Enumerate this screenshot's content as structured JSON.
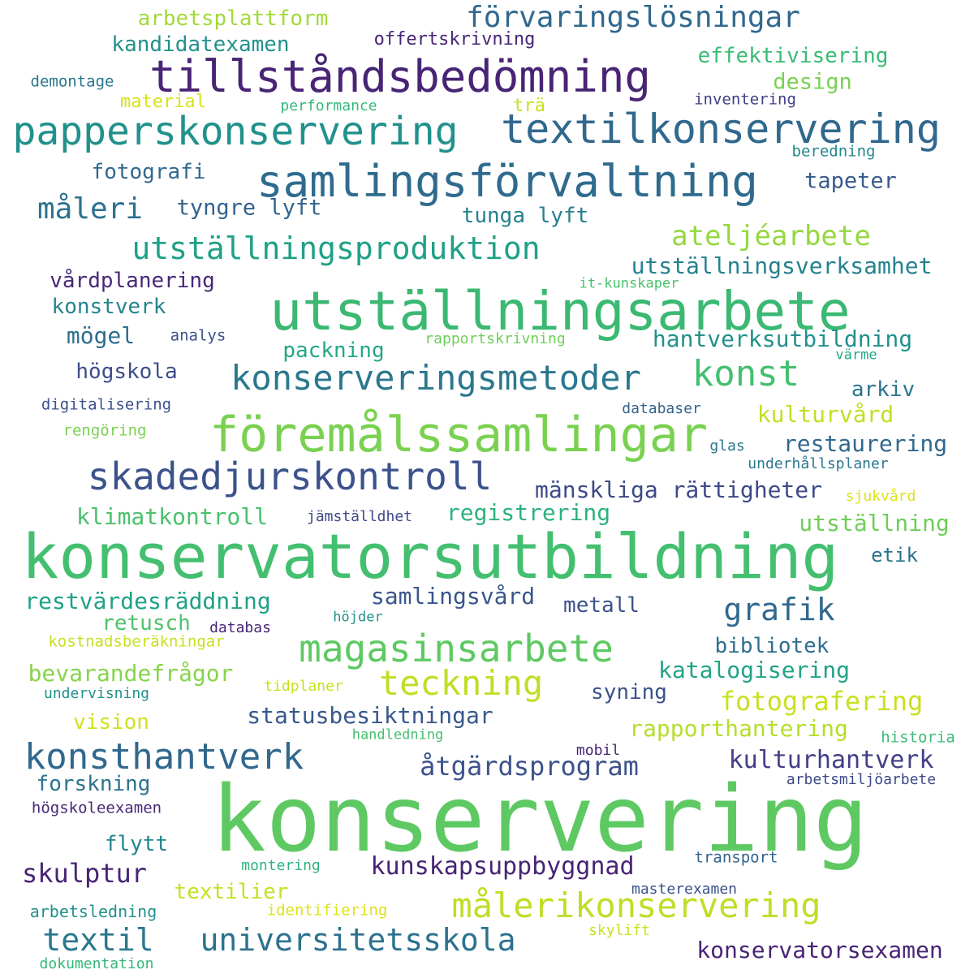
{
  "palette": {
    "dark_purple": "#482475",
    "indigo": "#414487",
    "steel_blue": "#355f8d",
    "teal_blue": "#2a788e",
    "teal": "#21918c",
    "green_teal": "#22a884",
    "green": "#44bf70",
    "light_green": "#7ad151",
    "lime": "#bddf26",
    "yellow": "#dce319"
  },
  "words": [
    {
      "text": "konservering",
      "color": "#5ec962",
      "weight": 1.0
    },
    {
      "text": "konservatorsutbildning",
      "color": "#44bf70",
      "weight": 0.72
    },
    {
      "text": "utställningsarbete",
      "color": "#3bb872",
      "weight": 0.62
    },
    {
      "text": "föremålssamlingar",
      "color": "#7ad151",
      "weight": 0.58
    },
    {
      "text": "samlingsförvaltning",
      "color": "#2f6b8e",
      "weight": 0.5
    },
    {
      "text": "tillståndsbedömning",
      "color": "#482475",
      "weight": 0.5
    },
    {
      "text": "textilkonservering",
      "color": "#31688e",
      "weight": 0.47
    },
    {
      "text": "papperskonservering",
      "color": "#21918c",
      "weight": 0.44
    },
    {
      "text": "magasinsarbete",
      "color": "#5ec962",
      "weight": 0.44
    },
    {
      "text": "skadedjurskontroll",
      "color": "#3b528b",
      "weight": 0.44
    },
    {
      "text": "konserveringsmetoder",
      "color": "#2a788e",
      "weight": 0.4
    },
    {
      "text": "konsthantverk",
      "color": "#31688e",
      "weight": 0.42
    },
    {
      "text": "målerikonservering",
      "color": "#bddf26",
      "weight": 0.4
    },
    {
      "text": "teckning",
      "color": "#bddf26",
      "weight": 0.4
    },
    {
      "text": "konst",
      "color": "#44bf70",
      "weight": 0.42
    },
    {
      "text": "utställningsproduktion",
      "color": "#1fa187",
      "weight": 0.36
    },
    {
      "text": "universitetsskola",
      "color": "#2c728e",
      "weight": 0.36
    },
    {
      "text": "textil",
      "color": "#2a788e",
      "weight": 0.36
    },
    {
      "text": "grafik",
      "color": "#31688e",
      "weight": 0.36
    },
    {
      "text": "förvaringslösningar",
      "color": "#31688e",
      "weight": 0.33
    },
    {
      "text": "måleri",
      "color": "#2c728e",
      "weight": 0.33
    },
    {
      "text": "ateljéarbete",
      "color": "#95d840",
      "weight": 0.32
    },
    {
      "text": "åtgärdsprogram",
      "color": "#3b528b",
      "weight": 0.31
    },
    {
      "text": "skulptur",
      "color": "#482475",
      "weight": 0.3
    },
    {
      "text": "fotografering",
      "color": "#c8e020",
      "weight": 0.3
    },
    {
      "text": "kulturhantverk",
      "color": "#433e85",
      "weight": 0.28
    },
    {
      "text": "kunskapsuppbyggnad",
      "color": "#482475",
      "weight": 0.27
    },
    {
      "text": "konservatorsexamen",
      "color": "#482475",
      "weight": 0.27
    },
    {
      "text": "statusbesiktningar",
      "color": "#38588c",
      "weight": 0.27
    },
    {
      "text": "utställningsverksamhet",
      "color": "#26828e",
      "weight": 0.26
    },
    {
      "text": "hantverksutbildning",
      "color": "#21918c",
      "weight": 0.26
    },
    {
      "text": "restaurering",
      "color": "#31688e",
      "weight": 0.26
    },
    {
      "text": "mänskliga rättigheter",
      "color": "#3e4989",
      "weight": 0.26
    },
    {
      "text": "restvärdesräddning",
      "color": "#1fa187",
      "weight": 0.26
    },
    {
      "text": "rapporthantering",
      "color": "#b5de2b",
      "weight": 0.26
    },
    {
      "text": "katalogisering",
      "color": "#20a386",
      "weight": 0.26
    },
    {
      "text": "bevarandefrågor",
      "color": "#86d549",
      "weight": 0.26
    },
    {
      "text": "utställning",
      "color": "#6ece58",
      "weight": 0.26
    },
    {
      "text": "klimatkontroll",
      "color": "#4ac16d",
      "weight": 0.26
    },
    {
      "text": "registrering",
      "color": "#2db27d",
      "weight": 0.26
    },
    {
      "text": "samlingsvård",
      "color": "#39568c",
      "weight": 0.26
    },
    {
      "text": "kulturvård",
      "color": "#c2df23",
      "weight": 0.26
    },
    {
      "text": "effektivisering",
      "color": "#3bbb75",
      "weight": 0.24
    },
    {
      "text": "arbetsplattform",
      "color": "#a0da39",
      "weight": 0.24
    },
    {
      "text": "kandidatexamen",
      "color": "#21918c",
      "weight": 0.24
    },
    {
      "text": "vårdplanering",
      "color": "#482878",
      "weight": 0.24
    },
    {
      "text": "tyngre lyft",
      "color": "#33638d",
      "weight": 0.25
    },
    {
      "text": "tapeter",
      "color": "#38598c",
      "weight": 0.25
    },
    {
      "text": "design",
      "color": "#7ad151",
      "weight": 0.25
    },
    {
      "text": "fotografi",
      "color": "#31688e",
      "weight": 0.24
    },
    {
      "text": "tunga lyft",
      "color": "#27808e",
      "weight": 0.24
    },
    {
      "text": "konstverk",
      "color": "#25848e",
      "weight": 0.24
    },
    {
      "text": "mögel",
      "color": "#2e6e8e",
      "weight": 0.26
    },
    {
      "text": "packning",
      "color": "#22a884",
      "weight": 0.24
    },
    {
      "text": "högskola",
      "color": "#3e4c8a",
      "weight": 0.24
    },
    {
      "text": "arkiv",
      "color": "#2a768e",
      "weight": 0.24
    },
    {
      "text": "metall",
      "color": "#3b528b",
      "weight": 0.24
    },
    {
      "text": "retusch",
      "color": "#4ec36b",
      "weight": 0.24
    },
    {
      "text": "etik",
      "color": "#2c728e",
      "weight": 0.22
    },
    {
      "text": "bibliotek",
      "color": "#2e6e8e",
      "weight": 0.24
    },
    {
      "text": "syning",
      "color": "#3b528b",
      "weight": 0.24
    },
    {
      "text": "vision",
      "color": "#d0e11c",
      "weight": 0.24
    },
    {
      "text": "forskning",
      "color": "#2c728e",
      "weight": 0.24
    },
    {
      "text": "flytt",
      "color": "#25858e",
      "weight": 0.24
    },
    {
      "text": "textilier",
      "color": "#c5e021",
      "weight": 0.24
    },
    {
      "text": "offertskrivning",
      "color": "#482475",
      "weight": 0.2
    },
    {
      "text": "trä",
      "color": "#c8e020",
      "weight": 0.2
    },
    {
      "text": "material",
      "color": "#d8e219",
      "weight": 0.2
    },
    {
      "text": "demontage",
      "color": "#2a788e",
      "weight": 0.17
    },
    {
      "text": "performance",
      "color": "#35b779",
      "weight": 0.16
    },
    {
      "text": "inventering",
      "color": "#433e85",
      "weight": 0.17
    },
    {
      "text": "beredning",
      "color": "#23898e",
      "weight": 0.17
    },
    {
      "text": "it-kunskaper",
      "color": "#4ac16d",
      "weight": 0.15
    },
    {
      "text": "analys",
      "color": "#3b528b",
      "weight": 0.17
    },
    {
      "text": "rapportskrivning",
      "color": "#6ece58",
      "weight": 0.16
    },
    {
      "text": "värme",
      "color": "#22a884",
      "weight": 0.15
    },
    {
      "text": "digitalisering",
      "color": "#3b528b",
      "weight": 0.17
    },
    {
      "text": "databaser",
      "color": "#33638d",
      "weight": 0.16
    },
    {
      "text": "rengöring",
      "color": "#7ad151",
      "weight": 0.17
    },
    {
      "text": "glas",
      "color": "#2a788e",
      "weight": 0.16
    },
    {
      "text": "underhållsplaner",
      "color": "#2a788e",
      "weight": 0.16
    },
    {
      "text": "sjukvård",
      "color": "#dde318",
      "weight": 0.16
    },
    {
      "text": "jämställdhet",
      "color": "#3e4989",
      "weight": 0.16
    },
    {
      "text": "höjder",
      "color": "#21918c",
      "weight": 0.15
    },
    {
      "text": "databas",
      "color": "#482475",
      "weight": 0.16
    },
    {
      "text": "kostnadsberäkningar",
      "color": "#c8e020",
      "weight": 0.17
    },
    {
      "text": "undervisning",
      "color": "#21918c",
      "weight": 0.16
    },
    {
      "text": "tidplaner",
      "color": "#c8e020",
      "weight": 0.16
    },
    {
      "text": "handledning",
      "color": "#44bf70",
      "weight": 0.15
    },
    {
      "text": "historia",
      "color": "#3bbb75",
      "weight": 0.17
    },
    {
      "text": "mobil",
      "color": "#482475",
      "weight": 0.16
    },
    {
      "text": "arbetsmiljöarbete",
      "color": "#3e4989",
      "weight": 0.16
    },
    {
      "text": "högskoleexamen",
      "color": "#482878",
      "weight": 0.17
    },
    {
      "text": "montering",
      "color": "#2db27d",
      "weight": 0.16
    },
    {
      "text": "transport",
      "color": "#33638d",
      "weight": 0.17
    },
    {
      "text": "masterexamen",
      "color": "#3b528b",
      "weight": 0.16
    },
    {
      "text": "identifiering",
      "color": "#dde318",
      "weight": 0.17
    },
    {
      "text": "arbetsledning",
      "color": "#21918c",
      "weight": 0.18
    },
    {
      "text": "skylift",
      "color": "#c8e020",
      "weight": 0.16
    },
    {
      "text": "dokumentation",
      "color": "#35b779",
      "weight": 0.16
    }
  ]
}
